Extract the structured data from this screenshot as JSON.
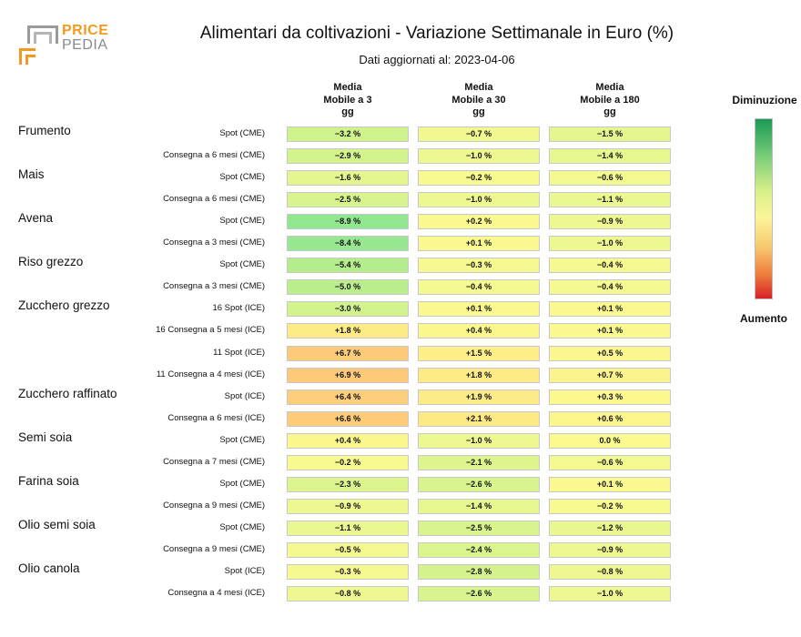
{
  "logo": {
    "line1": "PRICE",
    "line2": "PEDIA"
  },
  "chart_data": {
    "type": "table",
    "title": "Alimentari da coltivazioni - Variazione Settimanale in Euro (%)",
    "subtitle": "Dati aggiornati al: 2023-04-06",
    "columns": [
      [
        "Media",
        "Mobile a 3",
        "gg"
      ],
      [
        "Media",
        "Mobile a 30",
        "gg"
      ],
      [
        "Media",
        "Mobile a 180",
        "gg"
      ]
    ],
    "legend": {
      "top": "Diminuzione",
      "bottom": "Aumento",
      "top_color": "#1a9a55",
      "bottom_color": "#d7202a"
    },
    "rows": [
      {
        "group": "Frumento",
        "label": "Spot (CME)",
        "values": [
          -3.2,
          -0.7,
          -1.5
        ]
      },
      {
        "group": "",
        "label": "Consegna a 6 mesi (CME)",
        "values": [
          -2.9,
          -1.0,
          -1.4
        ]
      },
      {
        "group": "Mais",
        "label": "Spot (CME)",
        "values": [
          -1.6,
          -0.2,
          -0.6
        ]
      },
      {
        "group": "",
        "label": "Consegna a 6 mesi (CME)",
        "values": [
          -2.5,
          -1.0,
          -1.1
        ]
      },
      {
        "group": "Avena",
        "label": "Spot (CME)",
        "values": [
          -8.9,
          0.2,
          -0.9
        ]
      },
      {
        "group": "",
        "label": "Consegna a 3 mesi (CME)",
        "values": [
          -8.4,
          0.1,
          -1.0
        ]
      },
      {
        "group": "Riso grezzo",
        "label": "Spot (CME)",
        "values": [
          -5.4,
          -0.3,
          -0.4
        ]
      },
      {
        "group": "",
        "label": "Consegna a 3 mesi (CME)",
        "values": [
          -5.0,
          -0.4,
          -0.4
        ]
      },
      {
        "group": "Zucchero grezzo",
        "label": "16 Spot (ICE)",
        "values": [
          -3.0,
          0.1,
          0.1
        ]
      },
      {
        "group": "",
        "label": "16 Consegna a 5 mesi (ICE)",
        "values": [
          1.8,
          0.4,
          0.1
        ]
      },
      {
        "group": "",
        "label": "11 Spot (ICE)",
        "values": [
          6.7,
          1.5,
          0.5
        ]
      },
      {
        "group": "",
        "label": "11 Consegna a 4 mesi (ICE)",
        "values": [
          6.9,
          1.8,
          0.7
        ]
      },
      {
        "group": "Zucchero raffinato",
        "label": "Spot (ICE)",
        "values": [
          6.4,
          1.9,
          0.3
        ]
      },
      {
        "group": "",
        "label": "Consegna a 6 mesi (ICE)",
        "values": [
          6.6,
          2.1,
          0.6
        ]
      },
      {
        "group": "Semi soia",
        "label": "Spot (CME)",
        "values": [
          0.4,
          -1.0,
          0.0
        ]
      },
      {
        "group": "",
        "label": "Consegna a 7 mesi (CME)",
        "values": [
          -0.2,
          -2.1,
          -0.6
        ]
      },
      {
        "group": "Farina soia",
        "label": "Spot (CME)",
        "values": [
          -2.3,
          -2.6,
          0.1
        ]
      },
      {
        "group": "",
        "label": "Consegna a 9 mesi (CME)",
        "values": [
          -0.9,
          -1.4,
          -0.2
        ]
      },
      {
        "group": "Olio semi soia",
        "label": "Spot (CME)",
        "values": [
          -1.1,
          -2.5,
          -1.2
        ]
      },
      {
        "group": "",
        "label": "Consegna a 9 mesi (CME)",
        "values": [
          -0.5,
          -2.4,
          -0.9
        ]
      },
      {
        "group": "Olio canola",
        "label": "Spot (ICE)",
        "values": [
          -0.3,
          -2.8,
          -0.8
        ]
      },
      {
        "group": "",
        "label": "Consegna a 4 mesi (ICE)",
        "values": [
          -0.8,
          -2.6,
          -1.0
        ]
      }
    ]
  }
}
